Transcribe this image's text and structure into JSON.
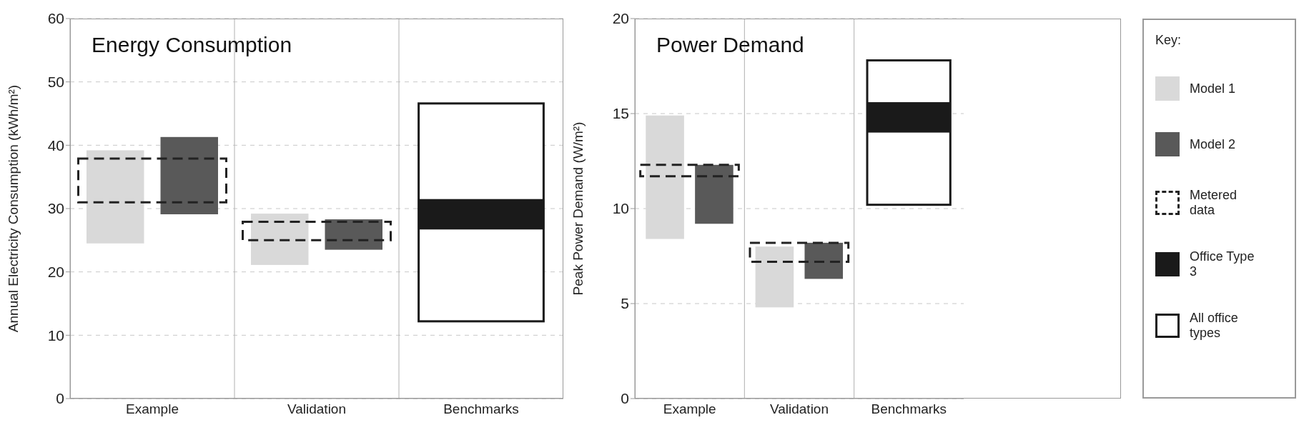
{
  "chart_data": [
    {
      "type": "bar",
      "title": "Energy Consumption",
      "ylabel": "Annual Electricity Consumption (kWh/m²)",
      "categories": [
        "Example",
        "Validation",
        "Benchmarks"
      ],
      "ylim": [
        0,
        60
      ],
      "yticks": [
        0,
        10,
        20,
        30,
        40,
        50,
        60
      ],
      "grid": true,
      "legend": false,
      "series": [
        {
          "color": "#d9d9d9",
          "base": [
            24.5,
            21.1,
            null
          ],
          "values": [
            14.7,
            8.1,
            null
          ]
        },
        {
          "color": "#595959",
          "base": [
            29.1,
            23.5,
            null
          ],
          "values": [
            12.2,
            4.8,
            null
          ]
        },
        {
          "color": "#222222",
          "line_style": "dashed",
          "base": [
            31.0,
            25.0,
            null
          ],
          "values": [
            6.9,
            2.9,
            null
          ]
        },
        {
          "color": "#1a1a1a",
          "base": [
            null,
            null,
            26.7
          ],
          "values": [
            null,
            null,
            4.8
          ]
        },
        {
          "color": "#ffffff",
          "base": [
            null,
            null,
            12.2
          ],
          "values": [
            null,
            null,
            34.4
          ]
        }
      ]
    },
    {
      "type": "bar",
      "title": "Power Demand",
      "ylabel": "Peak Power Demand (W/m²)",
      "categories": [
        "Example",
        "Validation",
        "Benchmarks"
      ],
      "ylim": [
        0,
        20
      ],
      "yticks": [
        0,
        5,
        10,
        15,
        20
      ],
      "grid": true,
      "legend": "right",
      "legend_title": "Key:",
      "series": [
        {
          "name": "Model 1",
          "color": "#d9d9d9",
          "base": [
            8.4,
            4.8,
            null
          ],
          "values": [
            6.5,
            3.2,
            null
          ]
        },
        {
          "name": "Model 2",
          "color": "#595959",
          "base": [
            9.2,
            6.3,
            null
          ],
          "values": [
            3.1,
            1.9,
            null
          ]
        },
        {
          "name": "Metered data",
          "color": "#222222",
          "line_style": "dashed",
          "base": [
            11.7,
            7.2,
            null
          ],
          "values": [
            0.6,
            1.0,
            null
          ]
        },
        {
          "name": "Office Type 3",
          "color": "#1a1a1a",
          "base": [
            null,
            null,
            14.0
          ],
          "values": [
            null,
            null,
            1.6
          ]
        },
        {
          "name": "All office types",
          "color": "#ffffff",
          "base": [
            null,
            null,
            10.2
          ],
          "values": [
            null,
            null,
            7.6
          ]
        }
      ]
    }
  ]
}
